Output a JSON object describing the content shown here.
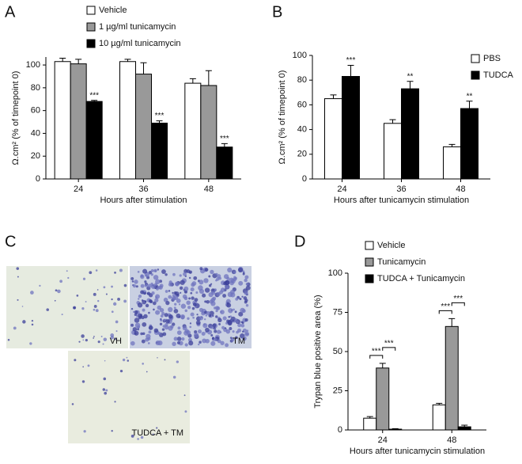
{
  "panel_labels": [
    "A",
    "B",
    "C",
    "D"
  ],
  "micrographs": [
    {
      "label": "VH"
    },
    {
      "label": "TM"
    },
    {
      "label": "TUDCA + TM"
    }
  ],
  "chart_data": [
    {
      "type": "bar",
      "xlabel": "Hours after stimulation",
      "ylabel": "Ω.cm² (% of timepoint 0)",
      "categories": [
        "24",
        "36",
        "48"
      ],
      "ylim": [
        0,
        107
      ],
      "yticks": [
        0,
        20,
        40,
        60,
        80,
        100
      ],
      "legend": "top",
      "series": [
        {
          "name": "Vehicle",
          "color": "#ffffff",
          "values": [
            103,
            103,
            84
          ],
          "errors": [
            3,
            2,
            4
          ],
          "significance": [
            null,
            null,
            null
          ]
        },
        {
          "name": "1 µg/ml tunicamycin",
          "color": "#999999",
          "values": [
            101,
            92,
            82
          ],
          "errors": [
            4,
            10,
            13
          ],
          "significance": [
            null,
            null,
            null
          ]
        },
        {
          "name": "10 µg/ml tunicamycin",
          "color": "#000000",
          "values": [
            68,
            49,
            28
          ],
          "errors": [
            1,
            2,
            3
          ],
          "significance": [
            "***",
            "***",
            "***"
          ]
        }
      ]
    },
    {
      "type": "bar",
      "xlabel": "Hours after tunicamycin stimulation",
      "ylabel": "Ω.cm² (% of timepoint 0)",
      "categories": [
        "24",
        "36",
        "48"
      ],
      "ylim": [
        0,
        100
      ],
      "yticks": [
        0,
        20,
        40,
        60,
        80,
        100
      ],
      "legend": "upper right",
      "series": [
        {
          "name": "PBS",
          "color": "#ffffff",
          "values": [
            65,
            45,
            26
          ],
          "errors": [
            3,
            3,
            2
          ],
          "significance": [
            null,
            null,
            null
          ]
        },
        {
          "name": "TUDCA",
          "color": "#000000",
          "values": [
            83,
            73,
            57
          ],
          "errors": [
            9,
            6,
            6
          ],
          "significance": [
            "***",
            "**",
            "**"
          ]
        }
      ]
    },
    {
      "type": "bar",
      "xlabel": "Hours after tunicamycin stimulation",
      "ylabel": "Trypan blue positive area (%)",
      "categories": [
        "24",
        "48"
      ],
      "ylim": [
        0,
        100
      ],
      "yticks": [
        0,
        25,
        50,
        75,
        100
      ],
      "legend": "top",
      "series": [
        {
          "name": "Vehicle",
          "color": "#ffffff",
          "values": [
            7.5,
            16
          ],
          "errors": [
            1,
            1
          ],
          "significance": [
            null,
            null
          ]
        },
        {
          "name": "Tunicamycin",
          "color": "#999999",
          "values": [
            39.5,
            66
          ],
          "errors": [
            3,
            5
          ],
          "significance": [
            null,
            null
          ]
        },
        {
          "name": "TUDCA + Tunicamycin",
          "color": "#000000",
          "values": [
            0.5,
            2
          ],
          "errors": [
            0.3,
            1
          ],
          "significance": [
            null,
            null
          ]
        }
      ],
      "comparisons": [
        {
          "category": "24",
          "series": [
            "Vehicle",
            "Tunicamycin"
          ],
          "label": "***"
        },
        {
          "category": "24",
          "series": [
            "Tunicamycin",
            "TUDCA + Tunicamycin"
          ],
          "label": "***"
        },
        {
          "category": "48",
          "series": [
            "Vehicle",
            "Tunicamycin"
          ],
          "label": "***"
        },
        {
          "category": "48",
          "series": [
            "Tunicamycin",
            "TUDCA + Tunicamycin"
          ],
          "label": "***"
        }
      ]
    }
  ]
}
